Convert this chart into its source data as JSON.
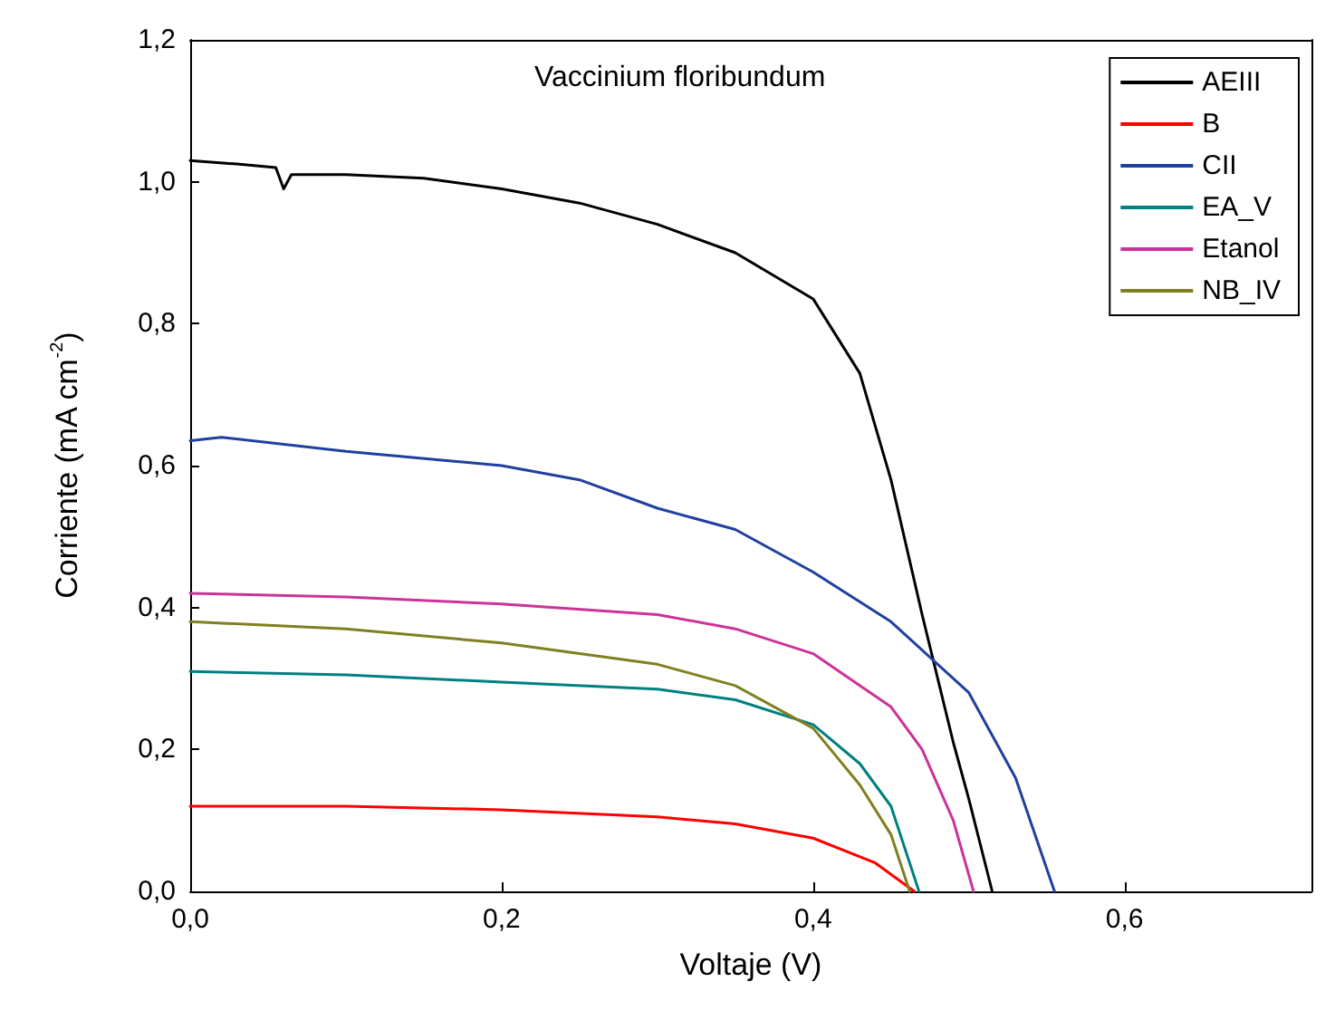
{
  "chart_data": {
    "type": "line",
    "title": "Vaccinium floribundum",
    "xlabel": "Voltaje (V)",
    "ylabel": "Corriente (mA cm$^{-2}$)",
    "xlim": [
      0,
      0.72
    ],
    "ylim": [
      0,
      1.2
    ],
    "xticks": [
      {
        "value": 0,
        "label": "0,0"
      },
      {
        "value": 0.2,
        "label": "0,2"
      },
      {
        "value": 0.4,
        "label": "0,4"
      },
      {
        "value": 0.6,
        "label": "0,6"
      }
    ],
    "yticks": [
      {
        "value": 0,
        "label": "0,0"
      },
      {
        "value": 0.2,
        "label": "0,2"
      },
      {
        "value": 0.4,
        "label": "0,4"
      },
      {
        "value": 0.6,
        "label": "0,6"
      },
      {
        "value": 0.8,
        "label": "0,8"
      },
      {
        "value": 1.0,
        "label": "1,0"
      },
      {
        "value": 1.2,
        "label": "1,2"
      }
    ],
    "grid": false,
    "legend": "top right",
    "marker": "none",
    "line_style": "solid",
    "series": [
      {
        "name": "AEIII",
        "color": "#000000",
        "x": [
          0,
          0.03,
          0.055,
          0.06,
          0.065,
          0.1,
          0.15,
          0.2,
          0.25,
          0.3,
          0.35,
          0.4,
          0.43,
          0.45,
          0.47,
          0.49,
          0.5,
          0.515
        ],
        "values": [
          1.03,
          1.025,
          1.02,
          0.99,
          1.01,
          1.01,
          1.005,
          0.99,
          0.97,
          0.94,
          0.9,
          0.835,
          0.73,
          0.58,
          0.39,
          0.21,
          0.13,
          0
        ]
      },
      {
        "name": "B",
        "color": "#ff0000",
        "x": [
          0,
          0.1,
          0.2,
          0.3,
          0.35,
          0.4,
          0.44,
          0.465
        ],
        "values": [
          0.12,
          0.12,
          0.115,
          0.105,
          0.095,
          0.075,
          0.04,
          0
        ]
      },
      {
        "name": "CII",
        "color": "#2040a0",
        "x": [
          0,
          0.02,
          0.1,
          0.2,
          0.25,
          0.3,
          0.35,
          0.4,
          0.45,
          0.5,
          0.53,
          0.555
        ],
        "values": [
          0.635,
          0.64,
          0.62,
          0.6,
          0.58,
          0.54,
          0.51,
          0.45,
          0.38,
          0.28,
          0.16,
          0
        ]
      },
      {
        "name": "EA_V",
        "color": "#008080",
        "x": [
          0,
          0.1,
          0.2,
          0.3,
          0.35,
          0.4,
          0.43,
          0.45,
          0.468
        ],
        "values": [
          0.31,
          0.305,
          0.295,
          0.285,
          0.27,
          0.235,
          0.18,
          0.12,
          0
        ]
      },
      {
        "name": "Etanol",
        "color": "#cc3399",
        "x": [
          0,
          0.1,
          0.2,
          0.3,
          0.35,
          0.4,
          0.45,
          0.47,
          0.49,
          0.503
        ],
        "values": [
          0.42,
          0.415,
          0.405,
          0.39,
          0.37,
          0.335,
          0.26,
          0.2,
          0.1,
          0
        ]
      },
      {
        "name": "NB_IV",
        "color": "#808020",
        "x": [
          0,
          0.1,
          0.2,
          0.3,
          0.35,
          0.4,
          0.43,
          0.45,
          0.462
        ],
        "values": [
          0.38,
          0.37,
          0.35,
          0.32,
          0.29,
          0.23,
          0.15,
          0.08,
          0
        ]
      }
    ]
  }
}
